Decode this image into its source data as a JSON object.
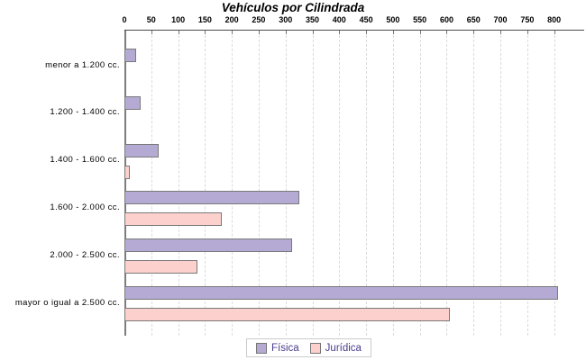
{
  "title": "Vehículos por Cilindrada",
  "chart_data": {
    "type": "bar",
    "orientation": "horizontal",
    "title": "Vehículos por Cilindrada",
    "categories": [
      "menor a 1.200 cc.",
      "1.200 - 1.400 cc.",
      "1.400 - 1.600 cc.",
      "1.600 - 2.000 cc.",
      "2.000 - 2.500 cc.",
      "mayor o igual a 2.500 cc."
    ],
    "series": [
      {
        "name": "Física",
        "color": "#b4aad4",
        "values": [
          22,
          30,
          64,
          325,
          313,
          807
        ]
      },
      {
        "name": "Jurídica",
        "color": "#fcd0cc",
        "values": [
          0,
          0,
          10,
          182,
          136,
          606
        ]
      }
    ],
    "x_ticks": [
      0,
      50,
      100,
      150,
      200,
      250,
      300,
      350,
      400,
      450,
      500,
      550,
      600,
      650,
      700,
      750,
      800
    ],
    "xlim": [
      0,
      856
    ],
    "grid": "vertical-dashed",
    "legend_position": "bottom"
  },
  "legend": {
    "items": [
      {
        "label": "Física",
        "color": "#b4aad4"
      },
      {
        "label": "Jurídica",
        "color": "#fcd0cc"
      }
    ]
  },
  "colors": {
    "background": "#ffffff",
    "axis_line": "#4a4a4a",
    "grid_line": "#dadada",
    "bar_border": "#7a7a7a",
    "legend_text": "#483d8b",
    "legend_border": "#cbcbcb",
    "title_text": "#000000"
  }
}
